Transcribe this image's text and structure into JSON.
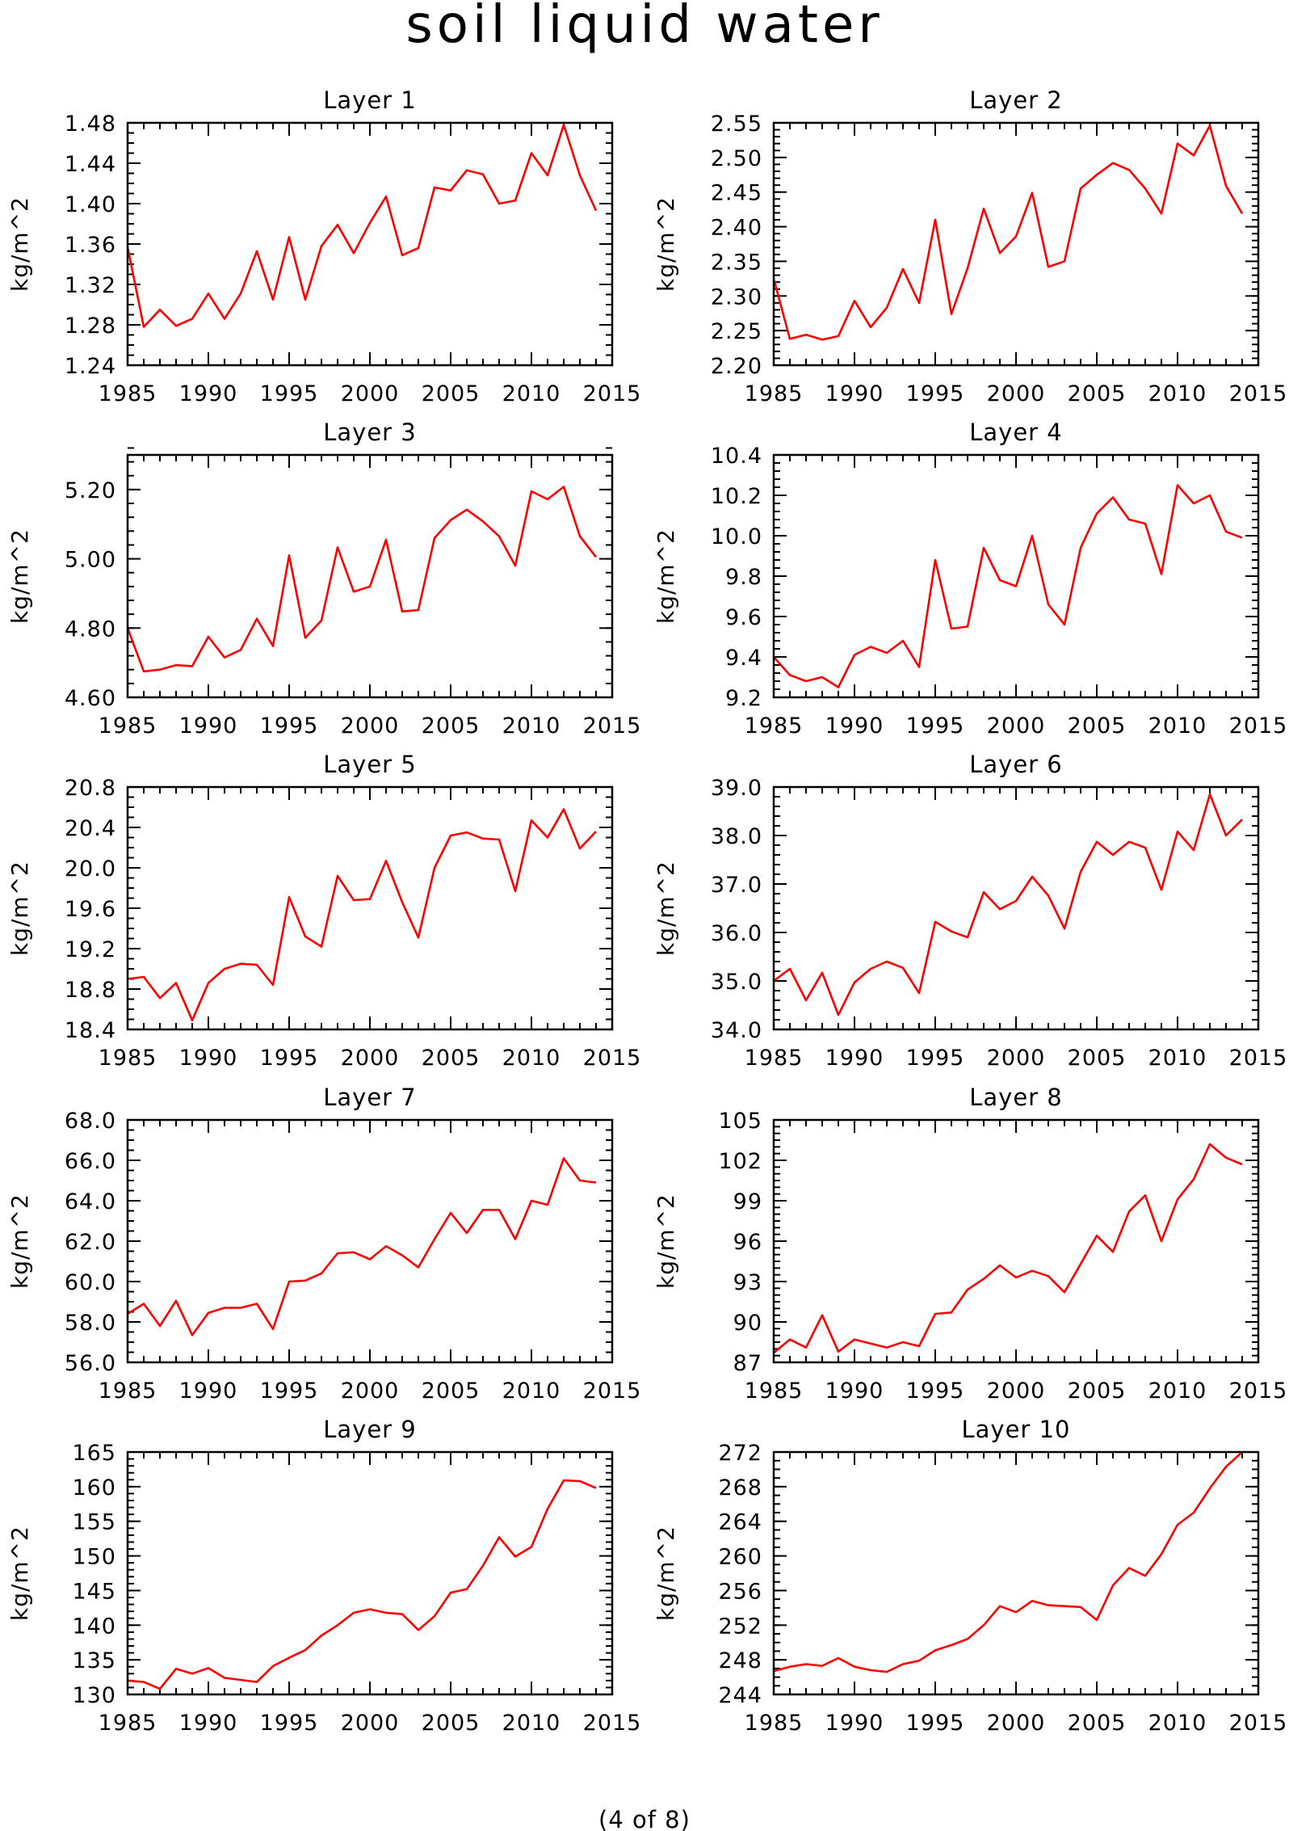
{
  "figure": {
    "title": "soil liquid water",
    "footer": "(4 of 8)"
  },
  "chart_data": [
    {
      "type": "line",
      "title": "Layer 1",
      "ylabel": "kg/m^2",
      "xlim": [
        1985,
        2015
      ],
      "xticks": [
        1985,
        1990,
        1995,
        2000,
        2005,
        2010,
        2015
      ],
      "ylim": [
        1.24,
        1.48
      ],
      "yticks": [
        "1.24",
        "1.28",
        "1.32",
        "1.36",
        "1.40",
        "1.44",
        "1.48"
      ],
      "ytick_values": [
        1.24,
        1.28,
        1.32,
        1.36,
        1.4,
        1.44,
        1.48
      ],
      "yminor": 0.01,
      "grid": false,
      "color": "#ff0000",
      "x": [
        1985,
        1986,
        1987,
        1988,
        1989,
        1990,
        1991,
        1992,
        1993,
        1994,
        1995,
        1996,
        1997,
        1998,
        1999,
        2000,
        2001,
        2002,
        2003,
        2004,
        2005,
        2006,
        2007,
        2008,
        2009,
        2010,
        2011,
        2012,
        2013,
        2014
      ],
      "values": [
        1.357,
        1.278,
        1.295,
        1.279,
        1.286,
        1.311,
        1.286,
        1.311,
        1.353,
        1.305,
        1.367,
        1.305,
        1.358,
        1.379,
        1.351,
        1.381,
        1.407,
        1.349,
        1.356,
        1.416,
        1.413,
        1.433,
        1.429,
        1.4,
        1.403,
        1.45,
        1.428,
        1.478,
        1.428,
        1.393
      ]
    },
    {
      "type": "line",
      "title": "Layer 2",
      "ylabel": "kg/m^2",
      "xlim": [
        1985,
        2015
      ],
      "xticks": [
        1985,
        1990,
        1995,
        2000,
        2005,
        2010,
        2015
      ],
      "ylim": [
        2.2,
        2.55
      ],
      "yticks": [
        "2.20",
        "2.25",
        "2.30",
        "2.35",
        "2.40",
        "2.45",
        "2.50",
        "2.55"
      ],
      "ytick_values": [
        2.2,
        2.25,
        2.3,
        2.35,
        2.4,
        2.45,
        2.5,
        2.55
      ],
      "yminor": 0.01,
      "grid": false,
      "color": "#ff0000",
      "x": [
        1985,
        1986,
        1987,
        1988,
        1989,
        1990,
        1991,
        1992,
        1993,
        1994,
        1995,
        1996,
        1997,
        1998,
        1999,
        2000,
        2001,
        2002,
        2003,
        2004,
        2005,
        2006,
        2007,
        2008,
        2009,
        2010,
        2011,
        2012,
        2013,
        2014
      ],
      "values": [
        2.325,
        2.238,
        2.244,
        2.237,
        2.242,
        2.293,
        2.255,
        2.283,
        2.339,
        2.29,
        2.41,
        2.274,
        2.34,
        2.426,
        2.362,
        2.386,
        2.449,
        2.342,
        2.35,
        2.455,
        2.475,
        2.492,
        2.482,
        2.455,
        2.419,
        2.52,
        2.503,
        2.546,
        2.459,
        2.419
      ]
    },
    {
      "type": "line",
      "title": "Layer 3",
      "ylabel": "kg/m^2",
      "xlim": [
        1985,
        2015
      ],
      "xticks": [
        1985,
        1990,
        1995,
        2000,
        2005,
        2010,
        2015
      ],
      "ylim": [
        4.6,
        5.3
      ],
      "yticks": [
        "4.60",
        "4.80",
        "5.00",
        "5.20"
      ],
      "ytick_values": [
        4.6,
        4.8,
        5.0,
        5.2
      ],
      "yminor": 0.04,
      "grid": false,
      "color": "#ff0000",
      "x": [
        1985,
        1986,
        1987,
        1988,
        1989,
        1990,
        1991,
        1992,
        1993,
        1994,
        1995,
        1996,
        1997,
        1998,
        1999,
        2000,
        2001,
        2002,
        2003,
        2004,
        2005,
        2006,
        2007,
        2008,
        2009,
        2010,
        2011,
        2012,
        2013,
        2014
      ],
      "values": [
        4.8,
        4.675,
        4.68,
        4.693,
        4.69,
        4.775,
        4.715,
        4.737,
        4.827,
        4.748,
        5.01,
        4.772,
        4.822,
        5.033,
        4.905,
        4.92,
        5.055,
        4.848,
        4.852,
        5.06,
        5.112,
        5.142,
        5.108,
        5.065,
        4.98,
        5.195,
        5.172,
        5.208,
        5.065,
        5.005
      ]
    },
    {
      "type": "line",
      "title": "Layer 4",
      "ylabel": "kg/m^2",
      "xlim": [
        1985,
        2015
      ],
      "xticks": [
        1985,
        1990,
        1995,
        2000,
        2005,
        2010,
        2015
      ],
      "ylim": [
        9.2,
        10.4
      ],
      "yticks": [
        "9.2",
        "9.4",
        "9.6",
        "9.8",
        "10.0",
        "10.2",
        "10.4"
      ],
      "ytick_values": [
        9.2,
        9.4,
        9.6,
        9.8,
        10.0,
        10.2,
        10.4
      ],
      "yminor": 0.04,
      "grid": false,
      "color": "#ff0000",
      "x": [
        1985,
        1986,
        1987,
        1988,
        1989,
        1990,
        1991,
        1992,
        1993,
        1994,
        1995,
        1996,
        1997,
        1998,
        1999,
        2000,
        2001,
        2002,
        2003,
        2004,
        2005,
        2006,
        2007,
        2008,
        2009,
        2010,
        2011,
        2012,
        2013,
        2014
      ],
      "values": [
        9.4,
        9.31,
        9.28,
        9.3,
        9.25,
        9.41,
        9.45,
        9.42,
        9.48,
        9.35,
        9.88,
        9.54,
        9.55,
        9.94,
        9.78,
        9.75,
        10.0,
        9.66,
        9.56,
        9.94,
        10.11,
        10.19,
        10.08,
        10.06,
        9.81,
        10.25,
        10.16,
        10.2,
        10.02,
        9.99
      ]
    },
    {
      "type": "line",
      "title": "Layer 5",
      "ylabel": "kg/m^2",
      "xlim": [
        1985,
        2015
      ],
      "xticks": [
        1985,
        1990,
        1995,
        2000,
        2005,
        2010,
        2015
      ],
      "ylim": [
        18.4,
        20.8
      ],
      "yticks": [
        "18.4",
        "18.8",
        "19.2",
        "19.6",
        "20.0",
        "20.4",
        "20.8"
      ],
      "ytick_values": [
        18.4,
        18.8,
        19.2,
        19.6,
        20.0,
        20.4,
        20.8
      ],
      "yminor": 0.1,
      "grid": false,
      "color": "#ff0000",
      "x": [
        1985,
        1986,
        1987,
        1988,
        1989,
        1990,
        1991,
        1992,
        1993,
        1994,
        1995,
        1996,
        1997,
        1998,
        1999,
        2000,
        2001,
        2002,
        2003,
        2004,
        2005,
        2006,
        2007,
        2008,
        2009,
        2010,
        2011,
        2012,
        2013,
        2014
      ],
      "values": [
        18.9,
        18.92,
        18.71,
        18.86,
        18.49,
        18.86,
        19.0,
        19.05,
        19.04,
        18.84,
        19.71,
        19.32,
        19.22,
        19.92,
        19.68,
        19.69,
        20.07,
        19.66,
        19.31,
        20.0,
        20.32,
        20.35,
        20.29,
        20.28,
        19.77,
        20.47,
        20.3,
        20.58,
        20.19,
        20.36
      ]
    },
    {
      "type": "line",
      "title": "Layer 6",
      "ylabel": "kg/m^2",
      "xlim": [
        1985,
        2015
      ],
      "xticks": [
        1985,
        1990,
        1995,
        2000,
        2005,
        2010,
        2015
      ],
      "ylim": [
        34.0,
        39.0
      ],
      "yticks": [
        "34.0",
        "35.0",
        "36.0",
        "37.0",
        "38.0",
        "39.0"
      ],
      "ytick_values": [
        34,
        35,
        36,
        37,
        38,
        39
      ],
      "yminor": 0.2,
      "grid": false,
      "color": "#ff0000",
      "x": [
        1985,
        1986,
        1987,
        1988,
        1989,
        1990,
        1991,
        1992,
        1993,
        1994,
        1995,
        1996,
        1997,
        1998,
        1999,
        2000,
        2001,
        2002,
        2003,
        2004,
        2005,
        2006,
        2007,
        2008,
        2009,
        2010,
        2011,
        2012,
        2013,
        2014
      ],
      "values": [
        35.0,
        35.25,
        34.6,
        35.17,
        34.3,
        34.97,
        35.25,
        35.4,
        35.27,
        34.75,
        36.22,
        36.02,
        35.9,
        36.83,
        36.48,
        36.65,
        37.15,
        36.76,
        36.08,
        37.25,
        37.87,
        37.6,
        37.87,
        37.75,
        36.88,
        38.08,
        37.7,
        38.85,
        38.0,
        38.33
      ]
    },
    {
      "type": "line",
      "title": "Layer 7",
      "ylabel": "kg/m^2",
      "xlim": [
        1985,
        2015
      ],
      "xticks": [
        1985,
        1990,
        1995,
        2000,
        2005,
        2010,
        2015
      ],
      "ylim": [
        56.0,
        68.0
      ],
      "yticks": [
        "56.0",
        "58.0",
        "60.0",
        "62.0",
        "64.0",
        "66.0",
        "68.0"
      ],
      "ytick_values": [
        56,
        58,
        60,
        62,
        64,
        66,
        68
      ],
      "yminor": 0.5,
      "grid": false,
      "color": "#ff0000",
      "x": [
        1985,
        1986,
        1987,
        1988,
        1989,
        1990,
        1991,
        1992,
        1993,
        1994,
        1995,
        1996,
        1997,
        1998,
        1999,
        2000,
        2001,
        2002,
        2003,
        2004,
        2005,
        2006,
        2007,
        2008,
        2009,
        2010,
        2011,
        2012,
        2013,
        2014
      ],
      "values": [
        58.4,
        58.9,
        57.8,
        59.05,
        57.35,
        58.45,
        58.7,
        58.7,
        58.9,
        57.65,
        60.0,
        60.05,
        60.4,
        61.4,
        61.45,
        61.1,
        61.75,
        61.3,
        60.7,
        62.1,
        63.4,
        62.4,
        63.55,
        63.55,
        62.1,
        64.0,
        63.8,
        66.1,
        65.0,
        64.9
      ]
    },
    {
      "type": "line",
      "title": "Layer 8",
      "ylabel": "kg/m^2",
      "xlim": [
        1985,
        2015
      ],
      "xticks": [
        1985,
        1990,
        1995,
        2000,
        2005,
        2010,
        2015
      ],
      "ylim": [
        87,
        105
      ],
      "yticks": [
        "87",
        "90",
        "93",
        "96",
        "99",
        "102",
        "105"
      ],
      "ytick_values": [
        87,
        90,
        93,
        96,
        99,
        102,
        105
      ],
      "yminor": 0.5,
      "grid": false,
      "color": "#ff0000",
      "x": [
        1985,
        1986,
        1987,
        1988,
        1989,
        1990,
        1991,
        1992,
        1993,
        1994,
        1995,
        1996,
        1997,
        1998,
        1999,
        2000,
        2001,
        2002,
        2003,
        2004,
        2005,
        2006,
        2007,
        2008,
        2009,
        2010,
        2011,
        2012,
        2013,
        2014
      ],
      "values": [
        87.7,
        88.7,
        88.1,
        90.5,
        87.8,
        88.7,
        88.4,
        88.1,
        88.5,
        88.2,
        90.6,
        90.7,
        92.4,
        93.2,
        94.2,
        93.3,
        93.8,
        93.4,
        92.2,
        94.3,
        96.4,
        95.2,
        98.2,
        99.4,
        96.0,
        99.1,
        100.6,
        103.2,
        102.2,
        101.7
      ]
    },
    {
      "type": "line",
      "title": "Layer 9",
      "ylabel": "kg/m^2",
      "xlim": [
        1985,
        2015
      ],
      "xticks": [
        1985,
        1990,
        1995,
        2000,
        2005,
        2010,
        2015
      ],
      "ylim": [
        130,
        165
      ],
      "yticks": [
        "130",
        "135",
        "140",
        "145",
        "150",
        "155",
        "160",
        "165"
      ],
      "ytick_values": [
        130,
        135,
        140,
        145,
        150,
        155,
        160,
        165
      ],
      "yminor": 1,
      "grid": false,
      "color": "#ff0000",
      "x": [
        1985,
        1986,
        1987,
        1988,
        1989,
        1990,
        1991,
        1992,
        1993,
        1994,
        1995,
        1996,
        1997,
        1998,
        1999,
        2000,
        2001,
        2002,
        2003,
        2004,
        2005,
        2006,
        2007,
        2008,
        2009,
        2010,
        2011,
        2012,
        2013,
        2014
      ],
      "values": [
        132.0,
        131.8,
        130.8,
        133.7,
        133.0,
        133.8,
        132.4,
        132.1,
        131.8,
        134.1,
        135.3,
        136.4,
        138.5,
        140.0,
        141.8,
        142.3,
        141.8,
        141.6,
        139.3,
        141.3,
        144.7,
        145.2,
        148.6,
        152.7,
        149.9,
        151.3,
        156.8,
        160.9,
        160.8,
        159.8
      ]
    },
    {
      "type": "line",
      "title": "Layer 10",
      "ylabel": "kg/m^2",
      "xlim": [
        1985,
        2015
      ],
      "xticks": [
        1985,
        1990,
        1995,
        2000,
        2005,
        2010,
        2015
      ],
      "ylim": [
        244,
        272
      ],
      "yticks": [
        "244",
        "248",
        "252",
        "256",
        "260",
        "264",
        "268",
        "272"
      ],
      "ytick_values": [
        244,
        248,
        252,
        256,
        260,
        264,
        268,
        272
      ],
      "yminor": 1,
      "grid": false,
      "color": "#ff0000",
      "x": [
        1985,
        1986,
        1987,
        1988,
        1989,
        1990,
        1991,
        1992,
        1993,
        1994,
        1995,
        1996,
        1997,
        1998,
        1999,
        2000,
        2001,
        2002,
        2003,
        2004,
        2005,
        2006,
        2007,
        2008,
        2009,
        2010,
        2011,
        2012,
        2013,
        2014
      ],
      "values": [
        246.7,
        247.2,
        247.5,
        247.3,
        248.2,
        247.2,
        246.8,
        246.6,
        247.5,
        247.9,
        249.1,
        249.7,
        250.4,
        252.0,
        254.2,
        253.5,
        254.8,
        254.3,
        254.2,
        254.1,
        252.6,
        256.6,
        258.6,
        257.7,
        260.2,
        263.6,
        265.0,
        267.8,
        270.3,
        272.0
      ]
    }
  ]
}
